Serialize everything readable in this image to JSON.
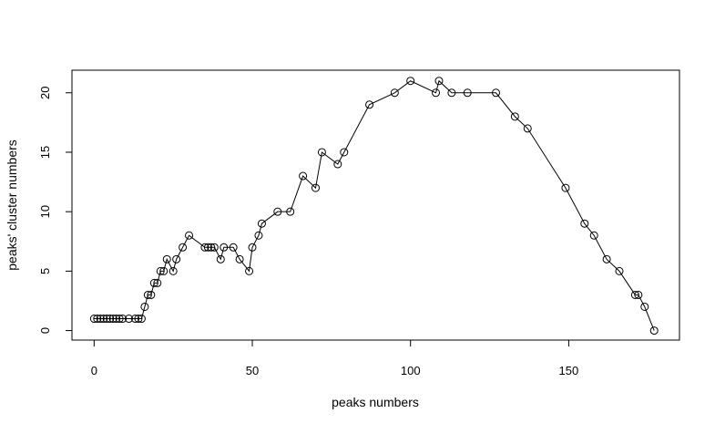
{
  "chart_data": {
    "type": "line",
    "title": "",
    "xlabel": "peaks numbers",
    "ylabel": "peaks' cluster numbers",
    "xlim": [
      -7,
      185
    ],
    "ylim": [
      -0.8,
      21.9
    ],
    "x_ticks": [
      0,
      50,
      100,
      150
    ],
    "y_ticks": [
      0,
      5,
      10,
      15,
      20
    ],
    "grid": false,
    "legend": "none",
    "marker": "open-circle",
    "series": [
      {
        "x": [
          0,
          1,
          2,
          3,
          4,
          5,
          6,
          7,
          8,
          9,
          11,
          13,
          14,
          15,
          16,
          17,
          18,
          19,
          20,
          21,
          22,
          23,
          25,
          26,
          28,
          30,
          35,
          36,
          37,
          38,
          40,
          41,
          44,
          46,
          49,
          50,
          52,
          53,
          58,
          62,
          66,
          70,
          72,
          77,
          79,
          87,
          95,
          100,
          108,
          109,
          113,
          118,
          127,
          133,
          137,
          149,
          155,
          158,
          162,
          166,
          171,
          172,
          174,
          177
        ],
        "y": [
          1,
          1,
          1,
          1,
          1,
          1,
          1,
          1,
          1,
          1,
          1,
          1,
          1,
          1,
          2,
          3,
          3,
          4,
          4,
          5,
          5,
          6,
          5,
          6,
          7,
          8,
          7,
          7,
          7,
          7,
          6,
          7,
          7,
          6,
          5,
          7,
          8,
          9,
          10,
          10,
          13,
          12,
          15,
          14,
          15,
          19,
          20,
          21,
          20,
          21,
          20,
          20,
          20,
          18,
          17,
          12,
          9,
          8,
          6,
          5,
          3,
          3,
          2,
          0
        ]
      }
    ]
  },
  "colors": {
    "line": "#000000",
    "axis": "#000000",
    "background": "#ffffff"
  }
}
